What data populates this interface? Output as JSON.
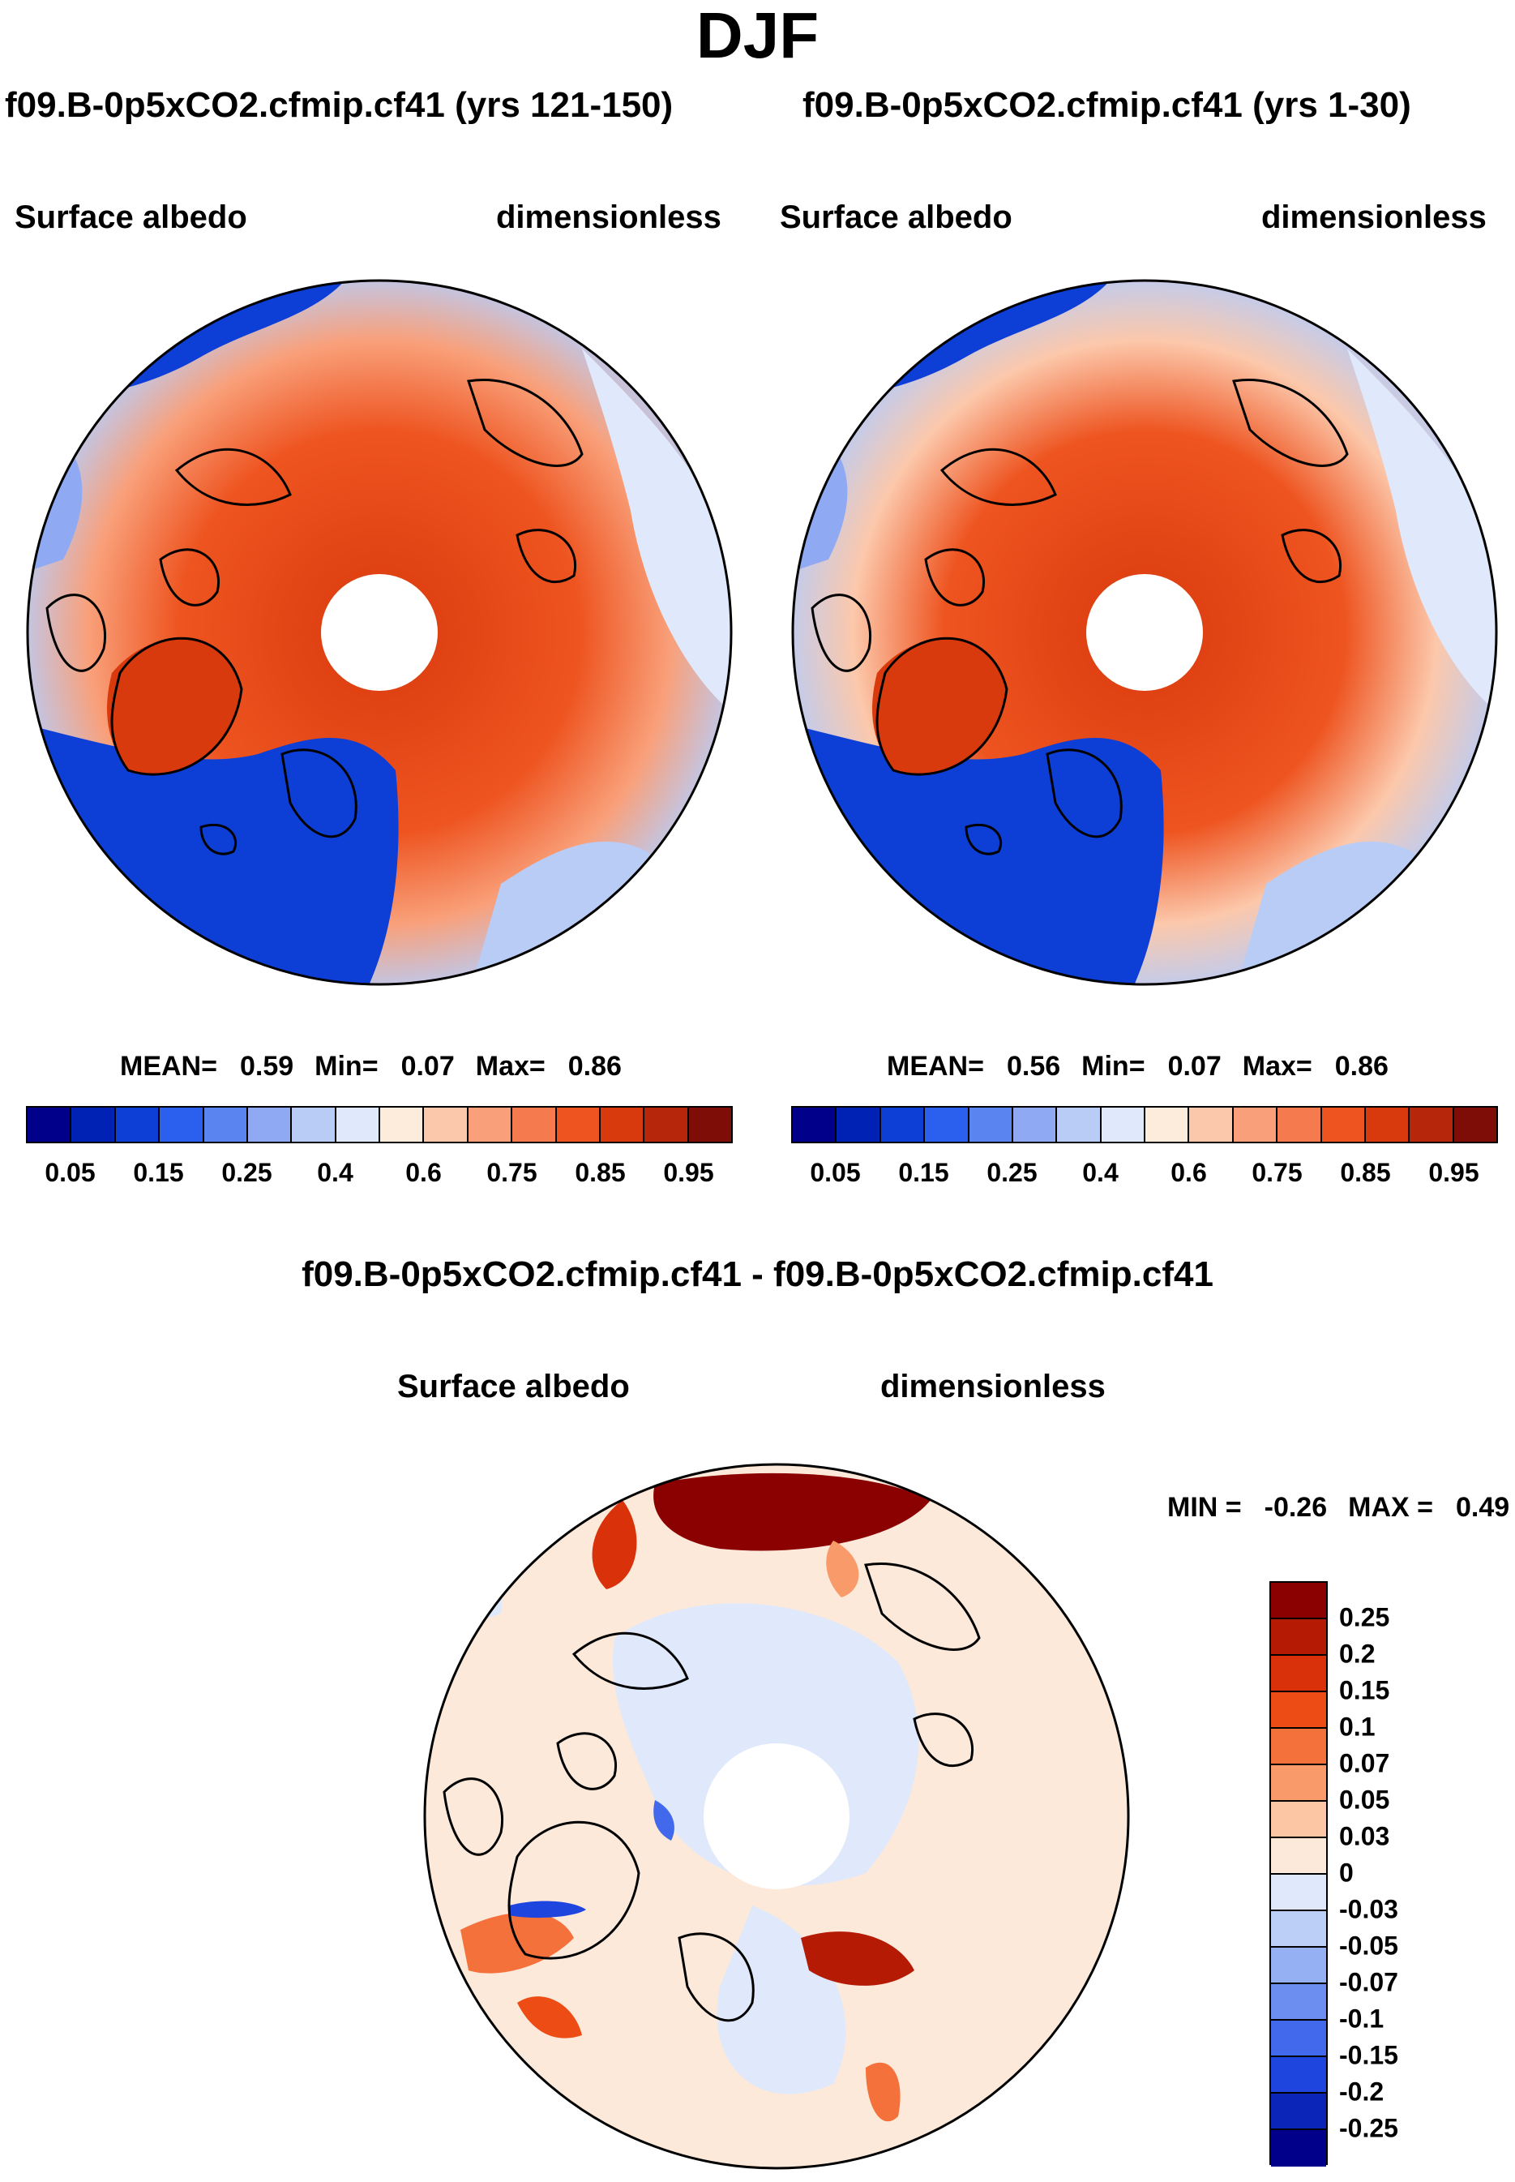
{
  "header": {
    "title": "DJF"
  },
  "panels": [
    {
      "title": "f09.B-0p5xCO2.cfmip.cf41 (yrs 121-150)",
      "left_label": "Surface albedo",
      "right_label": "dimensionless",
      "stats": {
        "mean_label": "MEAN=",
        "mean": "0.59",
        "min_label": "Min=",
        "min": "0.07",
        "max_label": "Max=",
        "max": "0.86"
      },
      "colorbar": {
        "colors": [
          "#00008b",
          "#0022b4",
          "#0d3fd6",
          "#2b60ee",
          "#5a85f0",
          "#8faaf3",
          "#b9ccf6",
          "#dfe9fb",
          "#fdecdc",
          "#fcc8ab",
          "#f9a07a",
          "#f57a4e",
          "#ee5420",
          "#d93a0d",
          "#b5260a",
          "#7d0d06"
        ],
        "ticks": [
          "0.05",
          "0.15",
          "0.25",
          "0.4",
          "0.6",
          "0.75",
          "0.85",
          "0.95"
        ]
      }
    },
    {
      "title": "f09.B-0p5xCO2.cfmip.cf41 (yrs 1-30)",
      "left_label": "Surface albedo",
      "right_label": "dimensionless",
      "stats": {
        "mean_label": "MEAN=",
        "mean": "0.56",
        "min_label": "Min=",
        "min": "0.07",
        "max_label": "Max=",
        "max": "0.86"
      },
      "colorbar": {
        "colors": [
          "#00008b",
          "#0022b4",
          "#0d3fd6",
          "#2b60ee",
          "#5a85f0",
          "#8faaf3",
          "#b9ccf6",
          "#dfe9fb",
          "#fdecdc",
          "#fcc8ab",
          "#f9a07a",
          "#f57a4e",
          "#ee5420",
          "#d93a0d",
          "#b5260a",
          "#7d0d06"
        ],
        "ticks": [
          "0.05",
          "0.15",
          "0.25",
          "0.4",
          "0.6",
          "0.75",
          "0.85",
          "0.95"
        ]
      }
    }
  ],
  "difference": {
    "title": "f09.B-0p5xCO2.cfmip.cf41 - f09.B-0p5xCO2.cfmip.cf41",
    "left_label": "Surface albedo",
    "right_label": "dimensionless",
    "minmax": {
      "min_label": "MIN =",
      "min": "-0.26",
      "max_label": "MAX =",
      "max": "0.49"
    },
    "colorbar": {
      "colors": [
        "#8b0000",
        "#b51a05",
        "#d9320b",
        "#ee4c15",
        "#f5713b",
        "#f99a6b",
        "#fcc6a5",
        "#fde9da",
        "#dfe9fb",
        "#bccff7",
        "#95b0f3",
        "#6c8ef0",
        "#4268ec",
        "#1f45df",
        "#0a25b8",
        "#00008b"
      ],
      "ticks": [
        "0.25",
        "0.2",
        "0.15",
        "0.1",
        "0.07",
        "0.05",
        "0.03",
        "0",
        "-0.03",
        "-0.05",
        "-0.07",
        "-0.1",
        "-0.15",
        "-0.2",
        "-0.25"
      ]
    }
  },
  "chart_data": [
    {
      "type": "heatmap",
      "projection": "north polar stereographic",
      "title": "f09.B-0p5xCO2.cfmip.cf41 (yrs 121-150)",
      "variable": "Surface albedo",
      "units": "dimensionless",
      "season": "DJF",
      "mean": 0.59,
      "min": 0.07,
      "max": 0.86,
      "levels": [
        0.05,
        0.1,
        0.15,
        0.2,
        0.25,
        0.3,
        0.4,
        0.5,
        0.6,
        0.7,
        0.75,
        0.8,
        0.85,
        0.9,
        0.95
      ]
    },
    {
      "type": "heatmap",
      "projection": "north polar stereographic",
      "title": "f09.B-0p5xCO2.cfmip.cf41 (yrs 1-30)",
      "variable": "Surface albedo",
      "units": "dimensionless",
      "season": "DJF",
      "mean": 0.56,
      "min": 0.07,
      "max": 0.86,
      "levels": [
        0.05,
        0.1,
        0.15,
        0.2,
        0.25,
        0.3,
        0.4,
        0.5,
        0.6,
        0.7,
        0.75,
        0.8,
        0.85,
        0.9,
        0.95
      ]
    },
    {
      "type": "heatmap",
      "projection": "north polar stereographic",
      "title": "f09.B-0p5xCO2.cfmip.cf41 - f09.B-0p5xCO2.cfmip.cf41",
      "variable": "Surface albedo",
      "units": "dimensionless",
      "season": "DJF",
      "min": -0.26,
      "max": 0.49,
      "levels": [
        -0.25,
        -0.2,
        -0.15,
        -0.1,
        -0.07,
        -0.05,
        -0.03,
        0,
        0.03,
        0.05,
        0.07,
        0.1,
        0.15,
        0.2,
        0.25
      ]
    }
  ]
}
